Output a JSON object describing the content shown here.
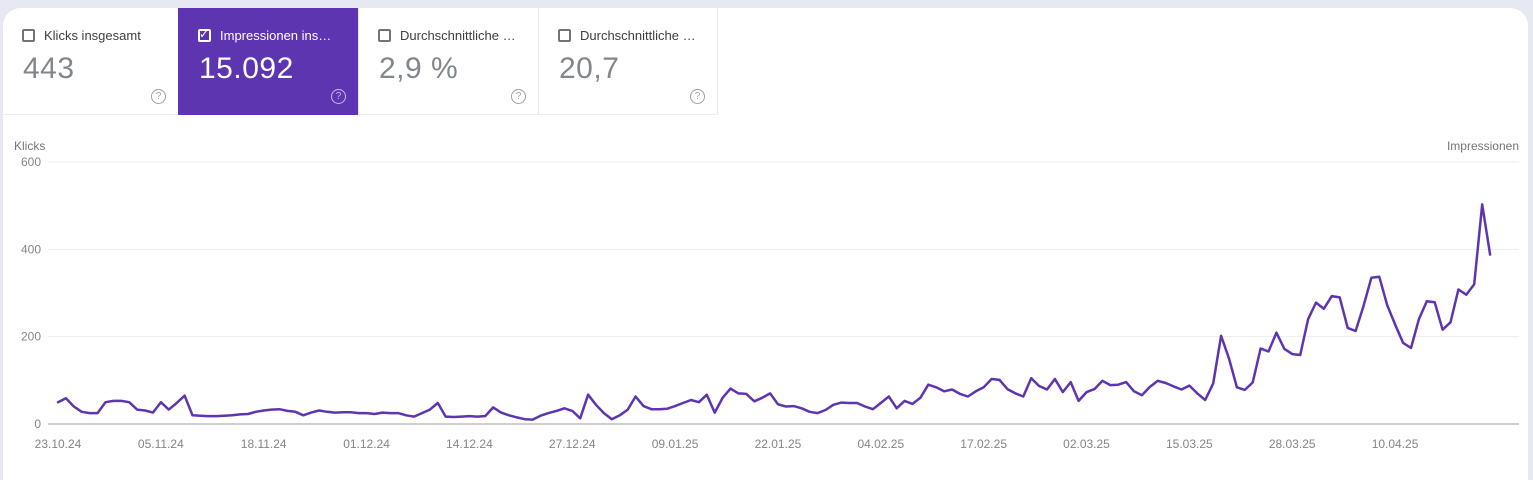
{
  "cards": [
    {
      "label": "Klicks insgesamt",
      "value": "443",
      "checked": false,
      "selected": false
    },
    {
      "label": "Impressionen ins…",
      "value": "15.092",
      "checked": true,
      "selected": true
    },
    {
      "label": "Durchschnittliche …",
      "value": "2,9 %",
      "checked": false,
      "selected": false
    },
    {
      "label": "Durchschnittliche …",
      "value": "20,7",
      "checked": false,
      "selected": false
    }
  ],
  "icons": {
    "check": "✓",
    "help": "?"
  },
  "colors": {
    "accent_purple": "#5e35b1",
    "line": "#5e35b1",
    "grid": "#ebedef",
    "zero_line": "#9aa0a6",
    "tick_text": "#80868b"
  },
  "chart_data": {
    "type": "line",
    "left_axis_label": "Klicks",
    "right_axis_label": "Impressionen",
    "ylim": [
      0,
      600
    ],
    "y_ticks": [
      0,
      200,
      400,
      600
    ],
    "grid": true,
    "legend_position": "none",
    "x_tick_labels": [
      "23.10.24",
      "05.11.24",
      "18.11.24",
      "01.12.24",
      "14.12.24",
      "27.12.24",
      "09.01.25",
      "22.01.25",
      "04.02.25",
      "17.02.25",
      "02.03.25",
      "15.03.25",
      "28.03.25",
      "10.04.25"
    ],
    "x_start_date": "23.10.24",
    "x_interval_days": 1,
    "series": [
      {
        "name": "Impressionen",
        "values": [
          50,
          59,
          40,
          28,
          25,
          25,
          50,
          53,
          53,
          50,
          33,
          31,
          26,
          50,
          33,
          48,
          65,
          20,
          19,
          18,
          18,
          19,
          20,
          22,
          23,
          28,
          31,
          33,
          34,
          30,
          28,
          20,
          26,
          31,
          28,
          26,
          27,
          27,
          25,
          25,
          23,
          26,
          25,
          25,
          20,
          17,
          25,
          33,
          48,
          17,
          16,
          17,
          18,
          17,
          18,
          38,
          26,
          20,
          15,
          11,
          10,
          19,
          25,
          30,
          36,
          30,
          13,
          67,
          44,
          25,
          11,
          20,
          33,
          63,
          41,
          34,
          34,
          35,
          41,
          48,
          55,
          50,
          67,
          26,
          60,
          81,
          70,
          69,
          52,
          60,
          70,
          45,
          40,
          41,
          36,
          28,
          25,
          32,
          44,
          49,
          48,
          48,
          40,
          34,
          48,
          63,
          36,
          53,
          46,
          60,
          90,
          84,
          75,
          79,
          69,
          63,
          75,
          84,
          103,
          101,
          80,
          70,
          63,
          105,
          87,
          79,
          103,
          73,
          96,
          53,
          73,
          80,
          99,
          89,
          90,
          96,
          75,
          66,
          85,
          99,
          94,
          86,
          79,
          88,
          70,
          55,
          93,
          202,
          150,
          84,
          78,
          95,
          173,
          166,
          209,
          172,
          160,
          158,
          240,
          278,
          264,
          293,
          290,
          220,
          213,
          270,
          335,
          337,
          272,
          228,
          186,
          174,
          240,
          281,
          279,
          216,
          233,
          308,
          296,
          320,
          503,
          388
        ]
      }
    ]
  }
}
